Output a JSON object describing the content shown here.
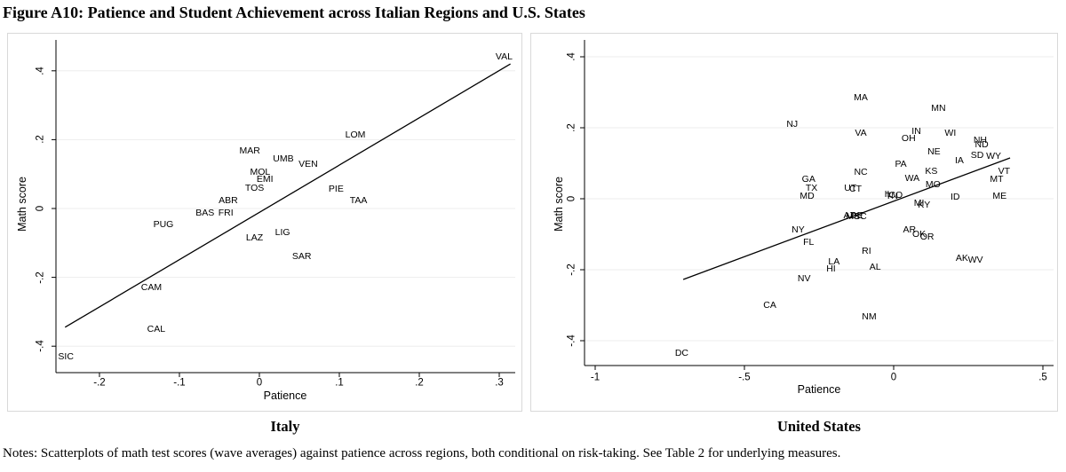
{
  "title": "Figure A10: Patience and Student Achievement across Italian Regions and U.S. States",
  "notes": "Notes: Scatterplots of math test scores (wave averages) against patience across regions, both conditional on risk-taking. See Table 2 for underlying measures.",
  "colors": {
    "line": "#000000",
    "gridline": "#ededed",
    "panel_border": "#d9d9d9",
    "text": "#000000"
  },
  "chart_data": [
    {
      "type": "scatter",
      "region_label": "Italy",
      "xlabel": "Patience",
      "ylabel": "Math score",
      "xlim": [
        -0.2544,
        0.32
      ],
      "ylim": [
        -0.4768,
        0.4897
      ],
      "grid": true,
      "xticks": [
        -0.2,
        -0.1,
        0,
        0.1,
        0.2,
        0.3
      ],
      "xtick_labels": [
        "-.2",
        "-.1",
        "0",
        ".1",
        ".2",
        ".3"
      ],
      "yticks": [
        0.4,
        0.2,
        0,
        -0.2,
        -0.4
      ],
      "ytick_labels": [
        ".4",
        ".2",
        "0",
        "-.2",
        "-.4"
      ],
      "fit_line": {
        "x1": -0.243,
        "y1": -0.345,
        "x2": 0.314,
        "y2": 0.42
      },
      "points": [
        {
          "label": "VAL",
          "x": 0.306,
          "y": 0.44
        },
        {
          "label": "LOM",
          "x": 0.12,
          "y": 0.215
        },
        {
          "label": "MAR",
          "x": -0.012,
          "y": 0.168
        },
        {
          "label": "UMB",
          "x": 0.03,
          "y": 0.145
        },
        {
          "label": "VEN",
          "x": 0.061,
          "y": 0.13
        },
        {
          "label": "MOL",
          "x": 0.001,
          "y": 0.106
        },
        {
          "label": "EMI",
          "x": 0.007,
          "y": 0.086
        },
        {
          "label": "TOS",
          "x": -0.006,
          "y": 0.06
        },
        {
          "label": "PIE",
          "x": 0.096,
          "y": 0.057
        },
        {
          "label": "TAA",
          "x": 0.124,
          "y": 0.023
        },
        {
          "label": "ABR",
          "x": -0.039,
          "y": 0.023
        },
        {
          "label": "BAS",
          "x": -0.068,
          "y": -0.013
        },
        {
          "label": "FRI",
          "x": -0.042,
          "y": -0.013
        },
        {
          "label": "PUG",
          "x": -0.12,
          "y": -0.047
        },
        {
          "label": "LAZ",
          "x": -0.006,
          "y": -0.086
        },
        {
          "label": "LIG",
          "x": 0.029,
          "y": -0.07
        },
        {
          "label": "SAR",
          "x": 0.053,
          "y": -0.14
        },
        {
          "label": "CAM",
          "x": -0.135,
          "y": -0.23
        },
        {
          "label": "CAL",
          "x": -0.129,
          "y": -0.35
        },
        {
          "label": "SIC",
          "x": -0.242,
          "y": -0.43
        }
      ]
    },
    {
      "type": "scatter",
      "region_label": "United States",
      "xlabel": "Patience",
      "ylabel": "Math score",
      "xlim": [
        -1.0357,
        0.5357
      ],
      "ylim": [
        -0.47,
        0.4475
      ],
      "grid": true,
      "xticks": [
        -1,
        -0.5,
        0,
        0.5
      ],
      "xtick_labels": [
        "-1",
        "-.5",
        "0",
        ".5"
      ],
      "yticks": [
        0.4,
        0.2,
        0,
        -0.2,
        -0.4
      ],
      "ytick_labels": [
        ".4",
        ".2",
        "0",
        "-.2",
        "-.4"
      ],
      "fit_line": {
        "x1": -0.705,
        "y1": -0.2275,
        "x2": 0.39,
        "y2": 0.115
      },
      "points": [
        {
          "label": "MA",
          "x": -0.11,
          "y": 0.285
        },
        {
          "label": "MN",
          "x": 0.15,
          "y": 0.255
        },
        {
          "label": "NJ",
          "x": -0.34,
          "y": 0.21
        },
        {
          "label": "VA",
          "x": -0.11,
          "y": 0.185
        },
        {
          "label": "IN",
          "x": 0.076,
          "y": 0.19
        },
        {
          "label": "OH",
          "x": 0.05,
          "y": 0.17
        },
        {
          "label": "WI",
          "x": 0.19,
          "y": 0.185
        },
        {
          "label": "NH",
          "x": 0.29,
          "y": 0.165
        },
        {
          "label": "ND",
          "x": 0.295,
          "y": 0.153
        },
        {
          "label": "NE",
          "x": 0.135,
          "y": 0.133
        },
        {
          "label": "SD",
          "x": 0.28,
          "y": 0.123
        },
        {
          "label": "WY",
          "x": 0.335,
          "y": 0.12
        },
        {
          "label": "IA",
          "x": 0.22,
          "y": 0.108
        },
        {
          "label": "PA",
          "x": 0.024,
          "y": 0.098
        },
        {
          "label": "KS",
          "x": 0.126,
          "y": 0.078
        },
        {
          "label": "WA",
          "x": 0.062,
          "y": 0.058
        },
        {
          "label": "MO",
          "x": 0.132,
          "y": 0.04
        },
        {
          "label": "VT",
          "x": 0.37,
          "y": 0.078
        },
        {
          "label": "MT",
          "x": 0.345,
          "y": 0.055
        },
        {
          "label": "ME",
          "x": 0.355,
          "y": 0.008
        },
        {
          "label": "ID",
          "x": 0.206,
          "y": 0.005
        },
        {
          "label": "NC",
          "x": -0.11,
          "y": 0.075
        },
        {
          "label": "GA",
          "x": -0.285,
          "y": 0.055
        },
        {
          "label": "TX",
          "x": -0.275,
          "y": 0.03
        },
        {
          "label": "MD",
          "x": -0.29,
          "y": 0.008
        },
        {
          "label": "UT",
          "x": -0.145,
          "y": 0.031
        },
        {
          "label": "CT",
          "x": -0.128,
          "y": 0.028
        },
        {
          "label": "IL",
          "x": -0.018,
          "y": 0.012
        },
        {
          "label": "TN",
          "x": -0.006,
          "y": 0.007
        },
        {
          "label": "CO",
          "x": 0.007,
          "y": 0.01
        },
        {
          "label": "MI",
          "x": 0.085,
          "y": -0.012
        },
        {
          "label": "KY",
          "x": 0.102,
          "y": -0.017
        },
        {
          "label": "AZ",
          "x": -0.148,
          "y": -0.047
        },
        {
          "label": "MS",
          "x": -0.136,
          "y": -0.05
        },
        {
          "label": "DE",
          "x": -0.124,
          "y": -0.048
        },
        {
          "label": "SC",
          "x": -0.112,
          "y": -0.051
        },
        {
          "label": "NY",
          "x": -0.32,
          "y": -0.088
        },
        {
          "label": "AR",
          "x": 0.053,
          "y": -0.088
        },
        {
          "label": "OK",
          "x": 0.085,
          "y": -0.1
        },
        {
          "label": "OR",
          "x": 0.112,
          "y": -0.108
        },
        {
          "label": "FL",
          "x": -0.285,
          "y": -0.123
        },
        {
          "label": "RI",
          "x": -0.091,
          "y": -0.148
        },
        {
          "label": "LA",
          "x": -0.2,
          "y": -0.178
        },
        {
          "label": "HI",
          "x": -0.21,
          "y": -0.198
        },
        {
          "label": "AL",
          "x": -0.062,
          "y": -0.193
        },
        {
          "label": "AK",
          "x": 0.229,
          "y": -0.168
        },
        {
          "label": "WV",
          "x": 0.274,
          "y": -0.173
        },
        {
          "label": "NV",
          "x": -0.3,
          "y": -0.225
        },
        {
          "label": "CA",
          "x": -0.415,
          "y": -0.3
        },
        {
          "label": "NM",
          "x": -0.082,
          "y": -0.333
        },
        {
          "label": "DC",
          "x": -0.71,
          "y": -0.435
        }
      ]
    }
  ]
}
